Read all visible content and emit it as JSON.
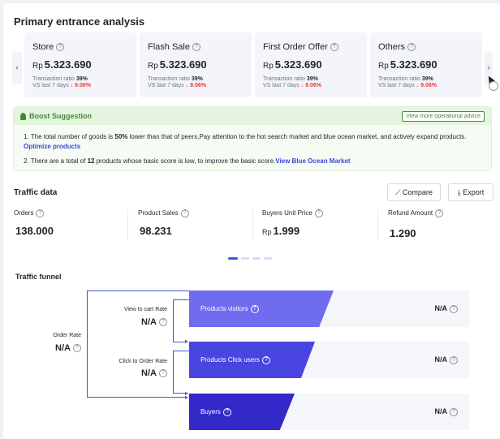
{
  "entrance": {
    "title": "Primary entrance analysis",
    "cards": [
      {
        "name": "Store",
        "currency": "Rp",
        "value": "5.323.690",
        "ratio_label": "Transaction ratio",
        "ratio": "39%",
        "vs_label": "VS last 7 days",
        "change": "9.06%"
      },
      {
        "name": "Flash Sale",
        "currency": "Rp",
        "value": "5.323.690",
        "ratio_label": "Transaction ratio",
        "ratio": "39%",
        "vs_label": "VS last 7 days",
        "change": "9.06%"
      },
      {
        "name": "First Order Offer",
        "currency": "Rp",
        "value": "5.323.690",
        "ratio_label": "Transaction ratio",
        "ratio": "39%",
        "vs_label": "VS last 7 days",
        "change": "9.06%"
      },
      {
        "name": "Others",
        "currency": "Rp",
        "value": "5.323.690",
        "ratio_label": "Transaction ratio",
        "ratio": "39%",
        "vs_label": "VS last 7 days",
        "change": "9.06%"
      }
    ],
    "prev_glyph": "‹",
    "next_glyph": "›",
    "down_glyph": "↓"
  },
  "boost": {
    "title": "Boost Suggestion",
    "advice_button": "View more operational advice",
    "line1_prefix": "1. The total number of goods is ",
    "line1_bold": "50%",
    "line1_suffix": " lower than that of peers,Pay attention to the hot search market and blue ocean market, and actively expand products.",
    "line1_link": "Optimize products",
    "line2_prefix": "2. There are a total of ",
    "line2_bold": "12",
    "line2_suffix": " products whose basic score is low, to improve the basic score.",
    "line2_link": "View Blue Ocean Market"
  },
  "traffic": {
    "title": "Traffic data",
    "compare_label": "Compare",
    "export_label": "Export",
    "metrics": [
      {
        "name": "Orders",
        "currency": "",
        "value": "138.000"
      },
      {
        "name": "Product Sales",
        "currency": "",
        "value": "98.231"
      },
      {
        "name": "Buyers Unit Price",
        "currency": "Rp",
        "value": "1.999"
      },
      {
        "name": "Refund Amount",
        "currency": "",
        "value": "1.290"
      }
    ]
  },
  "funnel": {
    "title": "Traffic funnel",
    "order_rate_label": "Order Rate",
    "order_rate_value": "N/A",
    "view_to_cart_label": "View to cart Rate",
    "view_to_cart_value": "N/A",
    "click_to_order_label": "Click to Order Rate",
    "click_to_order_value": "N/A",
    "stages": [
      {
        "name": "Products visitors",
        "value": "N/A",
        "color": "#6f6cf0"
      },
      {
        "name": "Products Click users",
        "value": "N/A",
        "color": "#4a45e0"
      },
      {
        "name": "Buyers",
        "value": "N/A",
        "color": "#3328c8"
      }
    ]
  },
  "colors": {
    "accent": "#4453d9",
    "positive": "#3e8e2f",
    "negative": "#e33b3b"
  }
}
